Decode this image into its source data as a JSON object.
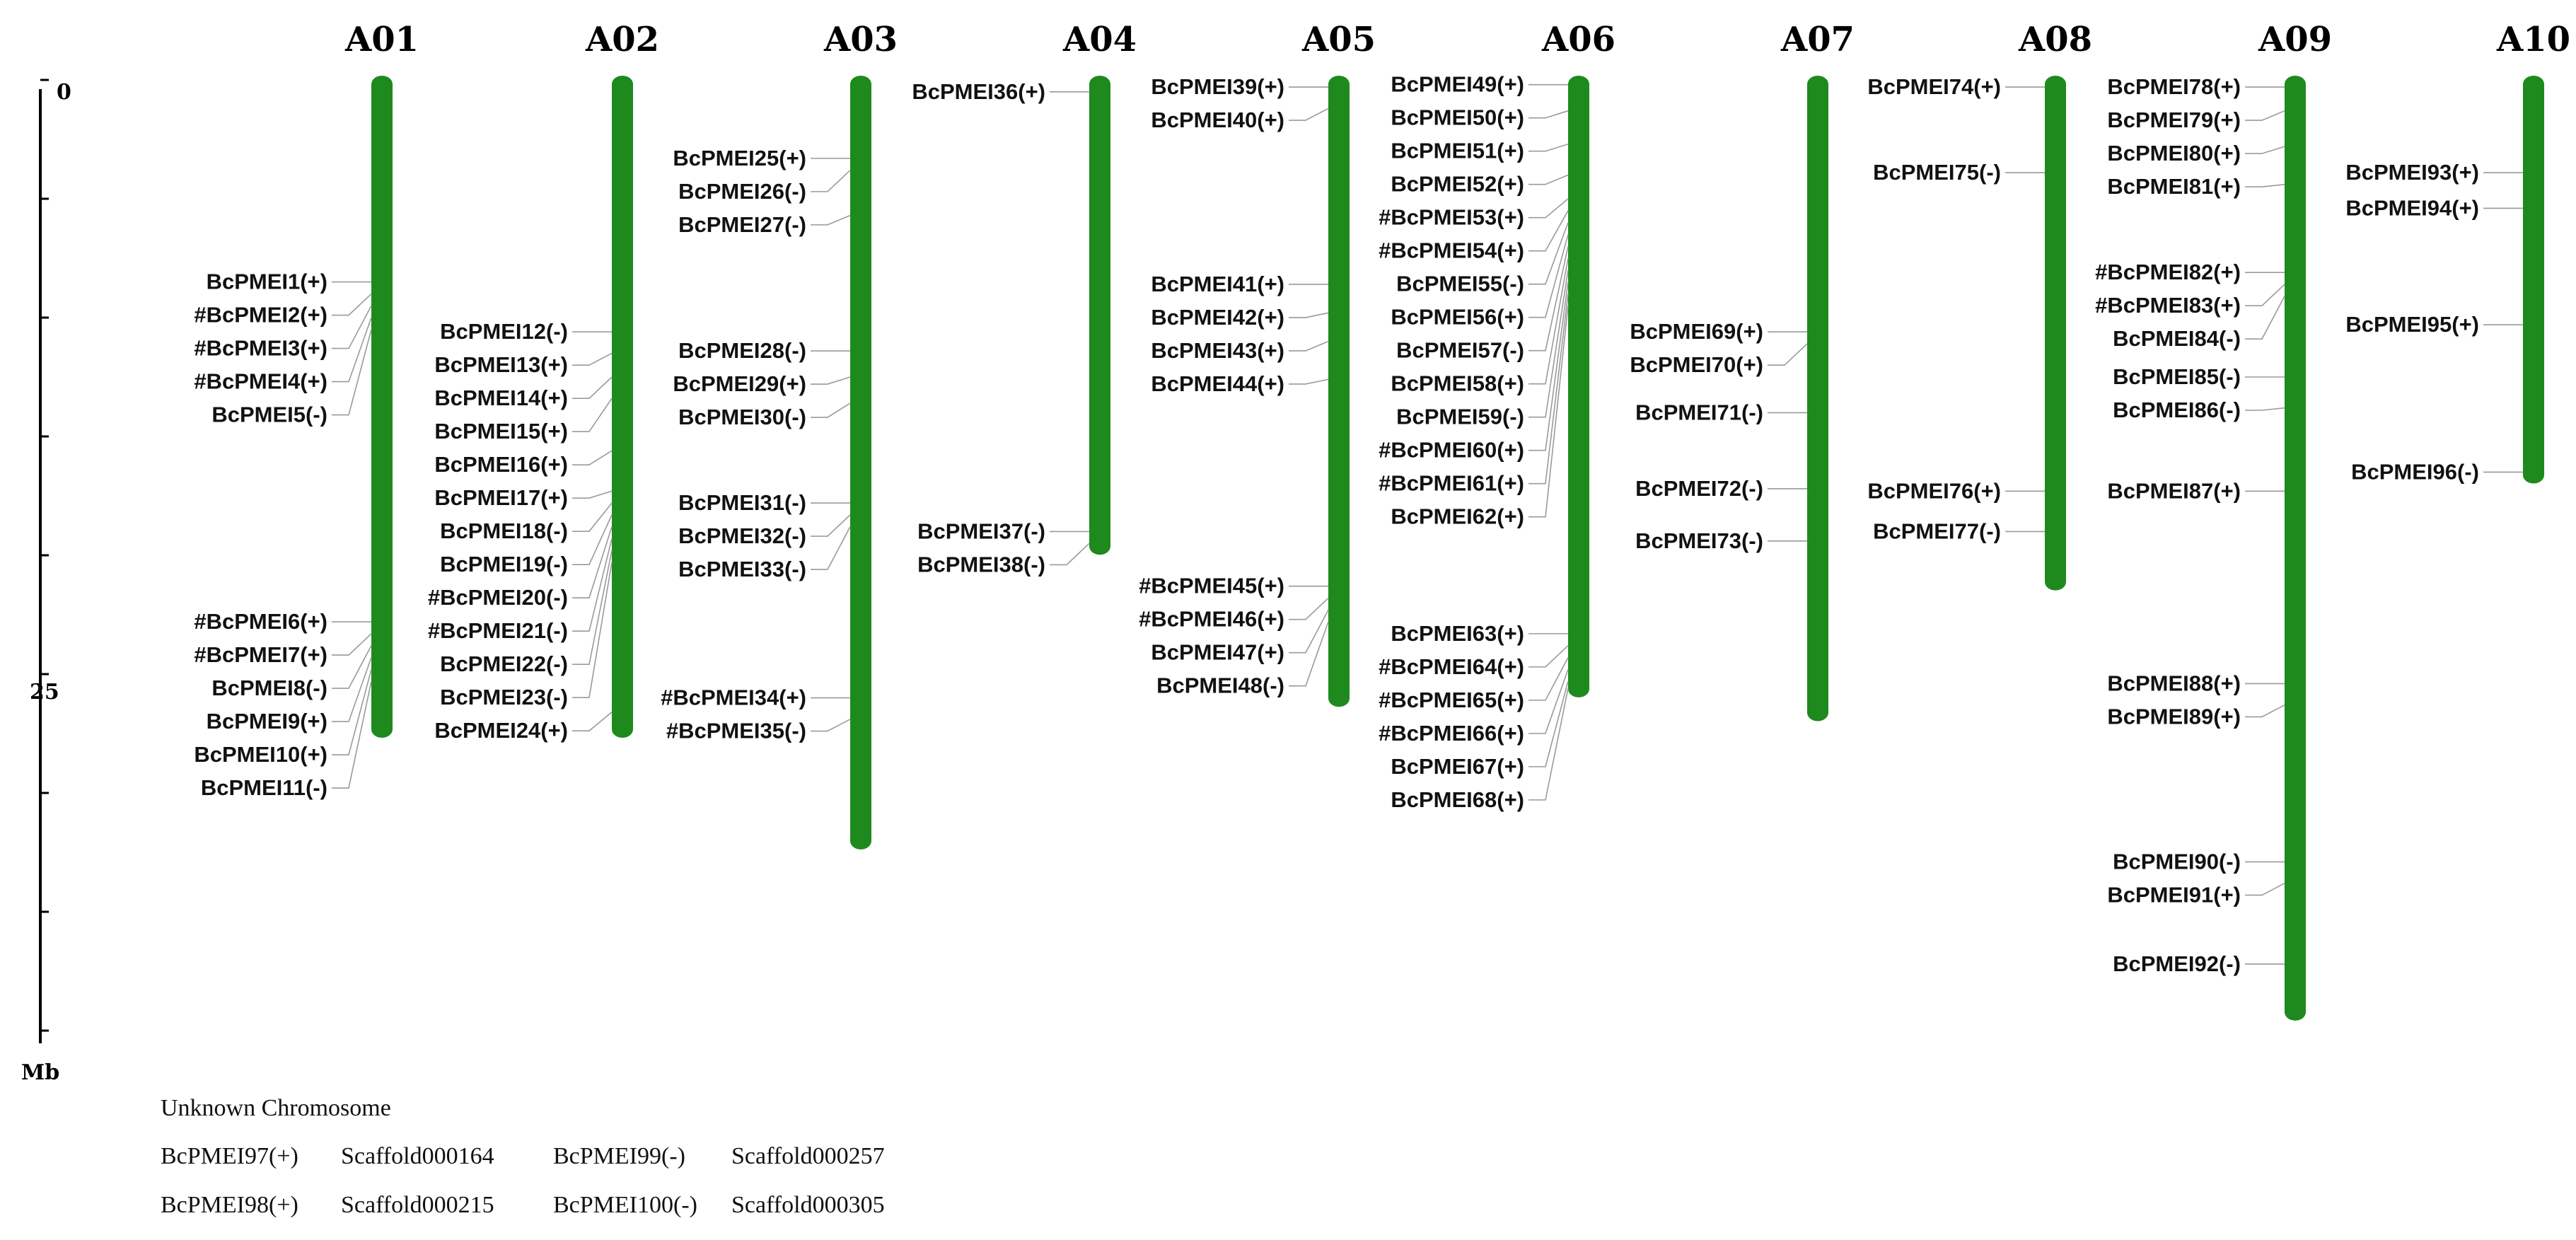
{
  "scale": {
    "top_label": "0",
    "mid_label": "25",
    "unit": "Mb"
  },
  "chromosomes": [
    {
      "id": "A01",
      "length_mb": 27.5,
      "genes": [
        {
          "name": "BcPMEI1(+)",
          "mb": 8.5
        },
        {
          "name": "#BcPMEI2(+)",
          "mb": 9.0
        },
        {
          "name": "#BcPMEI3(+)",
          "mb": 9.5
        },
        {
          "name": "#BcPMEI4(+)",
          "mb": 10.0
        },
        {
          "name": "BcPMEI5(-)",
          "mb": 10.5
        },
        {
          "name": "#BcPMEI6(+)",
          "mb": 22.8
        },
        {
          "name": "#BcPMEI7(+)",
          "mb": 23.3
        },
        {
          "name": "BcPMEI8(-)",
          "mb": 23.8
        },
        {
          "name": "BcPMEI9(+)",
          "mb": 24.3
        },
        {
          "name": "BcPMEI10(+)",
          "mb": 24.8
        },
        {
          "name": "BcPMEI11(-)",
          "mb": 25.3
        }
      ]
    },
    {
      "id": "A02",
      "length_mb": 27.5,
      "genes": [
        {
          "name": "BcPMEI12(-)",
          "mb": 10.6
        },
        {
          "name": "BcPMEI13(+)",
          "mb": 11.5
        },
        {
          "name": "BcPMEI14(+)",
          "mb": 12.5
        },
        {
          "name": "BcPMEI15(+)",
          "mb": 13.4
        },
        {
          "name": "BcPMEI16(+)",
          "mb": 15.6
        },
        {
          "name": "BcPMEI17(+)",
          "mb": 17.3
        },
        {
          "name": "BcPMEI18(-)",
          "mb": 17.8
        },
        {
          "name": "BcPMEI19(-)",
          "mb": 18.3
        },
        {
          "name": "#BcPMEI20(-)",
          "mb": 18.8
        },
        {
          "name": "#BcPMEI21(-)",
          "mb": 19.3
        },
        {
          "name": "BcPMEI22(-)",
          "mb": 19.8
        },
        {
          "name": "BcPMEI23(-)",
          "mb": 20.3
        },
        {
          "name": "BcPMEI24(+)",
          "mb": 26.6
        }
      ]
    },
    {
      "id": "A03",
      "length_mb": 32.2,
      "genes": [
        {
          "name": "BcPMEI25(+)",
          "mb": 3.3
        },
        {
          "name": "BcPMEI26(-)",
          "mb": 3.8
        },
        {
          "name": "BcPMEI27(-)",
          "mb": 5.7
        },
        {
          "name": "BcPMEI28(-)",
          "mb": 11.4
        },
        {
          "name": "BcPMEI29(+)",
          "mb": 12.5
        },
        {
          "name": "BcPMEI30(-)",
          "mb": 13.6
        },
        {
          "name": "BcPMEI31(-)",
          "mb": 17.8
        },
        {
          "name": "BcPMEI32(-)",
          "mb": 18.3
        },
        {
          "name": "BcPMEI33(-)",
          "mb": 18.8
        },
        {
          "name": "#BcPMEI34(+)",
          "mb": 26.0
        },
        {
          "name": "#BcPMEI35(-)",
          "mb": 26.9
        }
      ]
    },
    {
      "id": "A04",
      "length_mb": 19.8,
      "genes": [
        {
          "name": "BcPMEI36(+)",
          "mb": 0.5
        },
        {
          "name": "BcPMEI37(-)",
          "mb": 19.0
        },
        {
          "name": "BcPMEI38(-)",
          "mb": 19.5
        }
      ]
    },
    {
      "id": "A05",
      "length_mb": 26.2,
      "genes": [
        {
          "name": "BcPMEI39(+)",
          "mb": 0.3
        },
        {
          "name": "BcPMEI40(+)",
          "mb": 1.2
        },
        {
          "name": "BcPMEI41(+)",
          "mb": 8.6
        },
        {
          "name": "BcPMEI42(+)",
          "mb": 9.8
        },
        {
          "name": "BcPMEI43(+)",
          "mb": 11.0
        },
        {
          "name": "BcPMEI44(+)",
          "mb": 12.6
        },
        {
          "name": "#BcPMEI45(+)",
          "mb": 21.3
        },
        {
          "name": "#BcPMEI46(+)",
          "mb": 21.8
        },
        {
          "name": "BcPMEI47(+)",
          "mb": 22.3
        },
        {
          "name": "BcPMEI48(-)",
          "mb": 22.8
        }
      ]
    },
    {
      "id": "A06",
      "length_mb": 25.8,
      "genes": [
        {
          "name": "BcPMEI49(+)",
          "mb": 0.2
        },
        {
          "name": "BcPMEI50(+)",
          "mb": 1.3
        },
        {
          "name": "BcPMEI51(+)",
          "mb": 2.7
        },
        {
          "name": "BcPMEI52(+)",
          "mb": 4.0
        },
        {
          "name": "#BcPMEI53(+)",
          "mb": 5.0
        },
        {
          "name": "#BcPMEI54(+)",
          "mb": 5.5
        },
        {
          "name": "BcPMEI55(-)",
          "mb": 6.0
        },
        {
          "name": "BcPMEI56(+)",
          "mb": 6.5
        },
        {
          "name": "BcPMEI57(-)",
          "mb": 7.0
        },
        {
          "name": "BcPMEI58(+)",
          "mb": 7.5
        },
        {
          "name": "BcPMEI59(-)",
          "mb": 8.0
        },
        {
          "name": "#BcPMEI60(+)",
          "mb": 8.5
        },
        {
          "name": "#BcPMEI61(+)",
          "mb": 9.0
        },
        {
          "name": "BcPMEI62(+)",
          "mb": 9.5
        },
        {
          "name": "BcPMEI63(+)",
          "mb": 23.3
        },
        {
          "name": "#BcPMEI64(+)",
          "mb": 23.8
        },
        {
          "name": "#BcPMEI65(+)",
          "mb": 24.3
        },
        {
          "name": "#BcPMEI66(+)",
          "mb": 24.8
        },
        {
          "name": "BcPMEI67(+)",
          "mb": 25.3
        },
        {
          "name": "BcPMEI68(+)",
          "mb": 25.6
        }
      ]
    },
    {
      "id": "A07",
      "length_mb": 26.8,
      "genes": [
        {
          "name": "BcPMEI69(+)",
          "mb": 10.6
        },
        {
          "name": "BcPMEI70(+)",
          "mb": 11.1
        },
        {
          "name": "BcPMEI71(-)",
          "mb": 14.0
        },
        {
          "name": "BcPMEI72(-)",
          "mb": 17.2
        },
        {
          "name": "BcPMEI73(-)",
          "mb": 19.4
        }
      ]
    },
    {
      "id": "A08",
      "length_mb": 21.3,
      "genes": [
        {
          "name": "BcPMEI74(+)",
          "mb": 0.3
        },
        {
          "name": "BcPMEI75(-)",
          "mb": 3.9
        },
        {
          "name": "BcPMEI76(+)",
          "mb": 17.3
        },
        {
          "name": "BcPMEI77(-)",
          "mb": 19.0
        }
      ]
    },
    {
      "id": "A09",
      "length_mb": 39.4,
      "genes": [
        {
          "name": "BcPMEI78(+)",
          "mb": 0.3
        },
        {
          "name": "BcPMEI79(+)",
          "mb": 1.3
        },
        {
          "name": "BcPMEI80(+)",
          "mb": 2.8
        },
        {
          "name": "BcPMEI81(+)",
          "mb": 4.4
        },
        {
          "name": "#BcPMEI82(+)",
          "mb": 8.1
        },
        {
          "name": "#BcPMEI83(+)",
          "mb": 8.6
        },
        {
          "name": "BcPMEI84(-)",
          "mb": 9.1
        },
        {
          "name": "BcPMEI85(-)",
          "mb": 12.5
        },
        {
          "name": "BcPMEI86(-)",
          "mb": 13.8
        },
        {
          "name": "BcPMEI87(+)",
          "mb": 17.3
        },
        {
          "name": "BcPMEI88(+)",
          "mb": 25.4
        },
        {
          "name": "BcPMEI89(+)",
          "mb": 26.3
        },
        {
          "name": "BcPMEI90(-)",
          "mb": 32.9
        },
        {
          "name": "BcPMEI91(+)",
          "mb": 33.8
        },
        {
          "name": "BcPMEI92(-)",
          "mb": 37.2
        }
      ]
    },
    {
      "id": "A10",
      "length_mb": 16.8,
      "genes": [
        {
          "name": "BcPMEI93(+)",
          "mb": 3.9
        },
        {
          "name": "BcPMEI94(+)",
          "mb": 5.4
        },
        {
          "name": "BcPMEI95(+)",
          "mb": 10.3
        },
        {
          "name": "BcPMEI96(-)",
          "mb": 16.5
        }
      ]
    }
  ],
  "unknown": {
    "title": "Unknown Chromosome",
    "row1": {
      "gene1": "BcPMEI97(+)",
      "scaffold1": "Scaffold000164",
      "gene2": "BcPMEI99(-)",
      "scaffold2": "Scaffold000257"
    },
    "row2": {
      "gene1": "BcPMEI98(+)",
      "scaffold1": "Scaffold000215",
      "gene2": "BcPMEI100(-)",
      "scaffold2": "Scaffold000305"
    }
  },
  "colors": {
    "chromosome": "#1e8a1e",
    "connector": "#9a9a9a",
    "axis": "#000000"
  }
}
